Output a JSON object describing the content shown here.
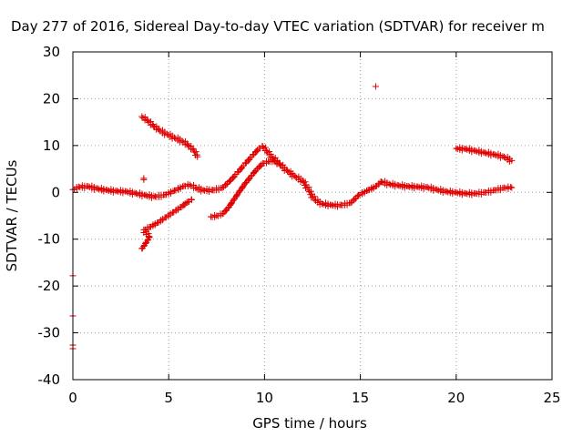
{
  "chart_data": {
    "type": "scatter",
    "title": "Day 277 of 2016, Sidereal Day-to-day VTEC variation (SDTVAR) for receiver m",
    "xlabel": "GPS time / hours",
    "ylabel": "SDTVAR / TECUs",
    "xlim": [
      0,
      25
    ],
    "ylim": [
      -40,
      30
    ],
    "xticks": [
      "0",
      "5",
      "10",
      "15",
      "20",
      "25"
    ],
    "xtick_values": [
      0,
      5,
      10,
      15,
      20,
      25
    ],
    "yticks": [
      "30",
      "20",
      "10",
      "0",
      "-10",
      "-20",
      "-30",
      "-40"
    ],
    "ytick_values": [
      30,
      20,
      10,
      0,
      -10,
      -20,
      -30,
      -40
    ],
    "grid": true,
    "marker": "plus",
    "color": "#e00000",
    "segments": [
      {
        "name": "main-band",
        "points": [
          [
            0.0,
            0.6
          ],
          [
            0.3,
            1.2
          ],
          [
            0.8,
            1.3
          ],
          [
            1.3,
            0.8
          ],
          [
            1.8,
            0.5
          ],
          [
            2.3,
            0.3
          ],
          [
            2.8,
            0.2
          ],
          [
            3.3,
            -0.2
          ],
          [
            3.8,
            -0.6
          ],
          [
            4.3,
            -0.9
          ],
          [
            4.8,
            -0.5
          ],
          [
            5.3,
            0.4
          ],
          [
            5.8,
            1.4
          ],
          [
            6.1,
            1.6
          ],
          [
            6.4,
            1.0
          ],
          [
            6.8,
            0.5
          ],
          [
            7.3,
            0.5
          ],
          [
            7.8,
            1.0
          ],
          [
            8.2,
            2.5
          ],
          [
            8.6,
            4.3
          ],
          [
            9.0,
            6.2
          ],
          [
            9.4,
            8.0
          ],
          [
            9.7,
            9.4
          ],
          [
            9.9,
            9.8
          ],
          [
            10.1,
            8.9
          ],
          [
            10.4,
            7.6
          ],
          [
            10.8,
            6.0
          ],
          [
            11.2,
            4.6
          ],
          [
            11.6,
            3.4
          ],
          [
            12.0,
            2.5
          ],
          [
            12.3,
            0.5
          ],
          [
            12.6,
            -1.5
          ],
          [
            13.0,
            -2.4
          ],
          [
            13.5,
            -2.7
          ],
          [
            14.0,
            -2.7
          ],
          [
            14.5,
            -2.2
          ],
          [
            14.9,
            -0.6
          ],
          [
            15.4,
            0.5
          ],
          [
            15.8,
            1.3
          ],
          [
            16.1,
            2.3
          ],
          [
            16.5,
            1.8
          ],
          [
            17.0,
            1.5
          ],
          [
            17.5,
            1.3
          ],
          [
            18.0,
            1.2
          ],
          [
            18.5,
            1.1
          ],
          [
            19.0,
            0.6
          ],
          [
            19.5,
            0.2
          ],
          [
            20.0,
            0.0
          ],
          [
            20.5,
            -0.2
          ],
          [
            21.0,
            -0.2
          ],
          [
            21.5,
            0.0
          ],
          [
            22.0,
            0.5
          ],
          [
            22.5,
            1.0
          ],
          [
            22.9,
            1.0
          ]
        ]
      },
      {
        "name": "upper-left-band",
        "points": [
          [
            3.6,
            16.2
          ],
          [
            3.9,
            15.3
          ],
          [
            4.2,
            14.2
          ],
          [
            4.5,
            13.3
          ],
          [
            4.9,
            12.5
          ],
          [
            5.3,
            11.7
          ],
          [
            5.7,
            11.0
          ],
          [
            6.0,
            10.1
          ],
          [
            6.3,
            9.0
          ],
          [
            6.5,
            7.6
          ]
        ]
      },
      {
        "name": "lower-left-band",
        "points": [
          [
            3.6,
            -12.0
          ],
          [
            3.8,
            -10.8
          ],
          [
            4.0,
            -9.5
          ],
          [
            3.7,
            -8.0
          ],
          [
            4.0,
            -7.4
          ],
          [
            4.4,
            -6.5
          ],
          [
            4.8,
            -5.4
          ],
          [
            5.2,
            -4.3
          ],
          [
            5.6,
            -3.2
          ],
          [
            6.0,
            -2.0
          ],
          [
            6.2,
            -1.6
          ]
        ]
      },
      {
        "name": "mid-rise-band",
        "points": [
          [
            7.2,
            -5.2
          ],
          [
            7.5,
            -5.0
          ],
          [
            7.8,
            -4.6
          ],
          [
            8.1,
            -3.3
          ],
          [
            8.4,
            -1.5
          ],
          [
            8.7,
            0.3
          ],
          [
            9.0,
            2.0
          ],
          [
            9.3,
            3.5
          ],
          [
            9.6,
            5.0
          ],
          [
            9.9,
            6.2
          ],
          [
            10.2,
            6.6
          ],
          [
            10.5,
            6.8
          ],
          [
            10.8,
            6.0
          ]
        ]
      },
      {
        "name": "upper-right-band",
        "points": [
          [
            20.0,
            9.4
          ],
          [
            20.5,
            9.3
          ],
          [
            21.0,
            8.9
          ],
          [
            21.5,
            8.5
          ],
          [
            22.0,
            8.1
          ],
          [
            22.5,
            7.6
          ],
          [
            22.9,
            6.8
          ]
        ]
      },
      {
        "name": "isolated",
        "points": [
          [
            15.8,
            22.6
          ],
          [
            3.7,
            2.7
          ],
          [
            3.7,
            3.0
          ],
          [
            0.0,
            -17.8
          ],
          [
            0.0,
            -26.4
          ],
          [
            0.0,
            -32.6
          ],
          [
            0.0,
            -33.4
          ]
        ]
      }
    ]
  }
}
